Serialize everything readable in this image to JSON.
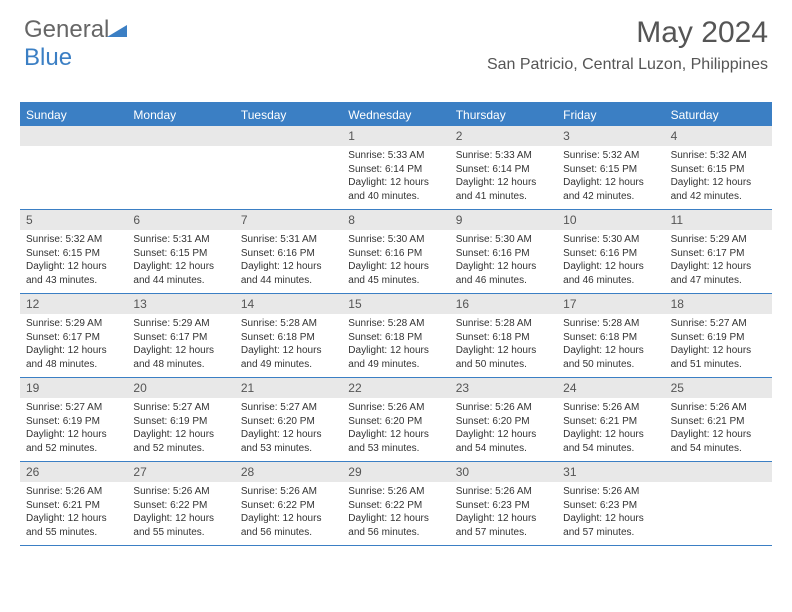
{
  "logo": {
    "text1": "General",
    "text2": "Blue"
  },
  "header": {
    "month": "May 2024",
    "location": "San Patricio, Central Luzon, Philippines"
  },
  "colors": {
    "accent": "#3b7fc4",
    "daynum_bg": "#e8e8e8",
    "text": "#333333",
    "header_text": "#555555"
  },
  "dow": [
    "Sunday",
    "Monday",
    "Tuesday",
    "Wednesday",
    "Thursday",
    "Friday",
    "Saturday"
  ],
  "weeks": [
    [
      {
        "n": "",
        "sr": "",
        "ss": "",
        "dl": ""
      },
      {
        "n": "",
        "sr": "",
        "ss": "",
        "dl": ""
      },
      {
        "n": "",
        "sr": "",
        "ss": "",
        "dl": ""
      },
      {
        "n": "1",
        "sr": "5:33 AM",
        "ss": "6:14 PM",
        "dl": "12 hours and 40 minutes."
      },
      {
        "n": "2",
        "sr": "5:33 AM",
        "ss": "6:14 PM",
        "dl": "12 hours and 41 minutes."
      },
      {
        "n": "3",
        "sr": "5:32 AM",
        "ss": "6:15 PM",
        "dl": "12 hours and 42 minutes."
      },
      {
        "n": "4",
        "sr": "5:32 AM",
        "ss": "6:15 PM",
        "dl": "12 hours and 42 minutes."
      }
    ],
    [
      {
        "n": "5",
        "sr": "5:32 AM",
        "ss": "6:15 PM",
        "dl": "12 hours and 43 minutes."
      },
      {
        "n": "6",
        "sr": "5:31 AM",
        "ss": "6:15 PM",
        "dl": "12 hours and 44 minutes."
      },
      {
        "n": "7",
        "sr": "5:31 AM",
        "ss": "6:16 PM",
        "dl": "12 hours and 44 minutes."
      },
      {
        "n": "8",
        "sr": "5:30 AM",
        "ss": "6:16 PM",
        "dl": "12 hours and 45 minutes."
      },
      {
        "n": "9",
        "sr": "5:30 AM",
        "ss": "6:16 PM",
        "dl": "12 hours and 46 minutes."
      },
      {
        "n": "10",
        "sr": "5:30 AM",
        "ss": "6:16 PM",
        "dl": "12 hours and 46 minutes."
      },
      {
        "n": "11",
        "sr": "5:29 AM",
        "ss": "6:17 PM",
        "dl": "12 hours and 47 minutes."
      }
    ],
    [
      {
        "n": "12",
        "sr": "5:29 AM",
        "ss": "6:17 PM",
        "dl": "12 hours and 48 minutes."
      },
      {
        "n": "13",
        "sr": "5:29 AM",
        "ss": "6:17 PM",
        "dl": "12 hours and 48 minutes."
      },
      {
        "n": "14",
        "sr": "5:28 AM",
        "ss": "6:18 PM",
        "dl": "12 hours and 49 minutes."
      },
      {
        "n": "15",
        "sr": "5:28 AM",
        "ss": "6:18 PM",
        "dl": "12 hours and 49 minutes."
      },
      {
        "n": "16",
        "sr": "5:28 AM",
        "ss": "6:18 PM",
        "dl": "12 hours and 50 minutes."
      },
      {
        "n": "17",
        "sr": "5:28 AM",
        "ss": "6:18 PM",
        "dl": "12 hours and 50 minutes."
      },
      {
        "n": "18",
        "sr": "5:27 AM",
        "ss": "6:19 PM",
        "dl": "12 hours and 51 minutes."
      }
    ],
    [
      {
        "n": "19",
        "sr": "5:27 AM",
        "ss": "6:19 PM",
        "dl": "12 hours and 52 minutes."
      },
      {
        "n": "20",
        "sr": "5:27 AM",
        "ss": "6:19 PM",
        "dl": "12 hours and 52 minutes."
      },
      {
        "n": "21",
        "sr": "5:27 AM",
        "ss": "6:20 PM",
        "dl": "12 hours and 53 minutes."
      },
      {
        "n": "22",
        "sr": "5:26 AM",
        "ss": "6:20 PM",
        "dl": "12 hours and 53 minutes."
      },
      {
        "n": "23",
        "sr": "5:26 AM",
        "ss": "6:20 PM",
        "dl": "12 hours and 54 minutes."
      },
      {
        "n": "24",
        "sr": "5:26 AM",
        "ss": "6:21 PM",
        "dl": "12 hours and 54 minutes."
      },
      {
        "n": "25",
        "sr": "5:26 AM",
        "ss": "6:21 PM",
        "dl": "12 hours and 54 minutes."
      }
    ],
    [
      {
        "n": "26",
        "sr": "5:26 AM",
        "ss": "6:21 PM",
        "dl": "12 hours and 55 minutes."
      },
      {
        "n": "27",
        "sr": "5:26 AM",
        "ss": "6:22 PM",
        "dl": "12 hours and 55 minutes."
      },
      {
        "n": "28",
        "sr": "5:26 AM",
        "ss": "6:22 PM",
        "dl": "12 hours and 56 minutes."
      },
      {
        "n": "29",
        "sr": "5:26 AM",
        "ss": "6:22 PM",
        "dl": "12 hours and 56 minutes."
      },
      {
        "n": "30",
        "sr": "5:26 AM",
        "ss": "6:23 PM",
        "dl": "12 hours and 57 minutes."
      },
      {
        "n": "31",
        "sr": "5:26 AM",
        "ss": "6:23 PM",
        "dl": "12 hours and 57 minutes."
      },
      {
        "n": "",
        "sr": "",
        "ss": "",
        "dl": ""
      }
    ]
  ],
  "labels": {
    "sunrise": "Sunrise: ",
    "sunset": "Sunset: ",
    "daylight": "Daylight: "
  }
}
